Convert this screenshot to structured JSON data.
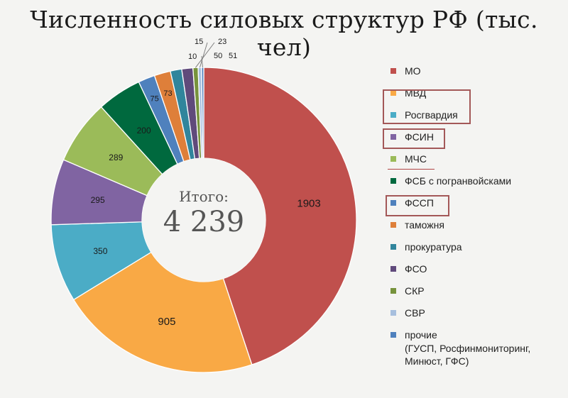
{
  "page": {
    "title": "Численность силовых структур РФ (тыс. чел)"
  },
  "chart_data": {
    "type": "pie",
    "title": "Численность силовых структур РФ (тыс. чел)",
    "center_label": "Итого:",
    "center_value": "4 239",
    "total": 4239,
    "legend_position": "right",
    "slices": [
      {
        "name": "МО",
        "value": 1903,
        "label": "1903",
        "color": "#c0504d"
      },
      {
        "name": "МВД",
        "value": 905,
        "label": "905",
        "color": "#f9a945"
      },
      {
        "name": "Росгвардия",
        "value": 350,
        "label": "350",
        "color": "#4bacc6"
      },
      {
        "name": "ФСИН",
        "value": 295,
        "label": "295",
        "color": "#8064a2"
      },
      {
        "name": "МЧС",
        "value": 289,
        "label": "289",
        "color": "#9bbb59"
      },
      {
        "name": "ФСБ с погранвойсками",
        "value": 200,
        "label": "200",
        "color": "#00693e"
      },
      {
        "name": "ФССП",
        "value": 75,
        "label": "75",
        "color": "#4f81bd"
      },
      {
        "name": "таможня",
        "value": 73,
        "label": "73",
        "color": "#de7f3a"
      },
      {
        "name": "прокуратура",
        "value": 51,
        "label": "51",
        "color": "#31859c"
      },
      {
        "name": "ФСО",
        "value": 50,
        "label": "50",
        "color": "#604a7b"
      },
      {
        "name": "СКР",
        "value": 23,
        "label": "23",
        "color": "#77933c"
      },
      {
        "name": "СВР",
        "value": 15,
        "label": "15",
        "color": "#a7bfde"
      },
      {
        "name": "прочие",
        "subtitle": "(ГУСП, Росфинмониторинг, Минюст, ГФС)",
        "value": 10,
        "label": "10",
        "color": "#4f81bd"
      }
    ]
  }
}
